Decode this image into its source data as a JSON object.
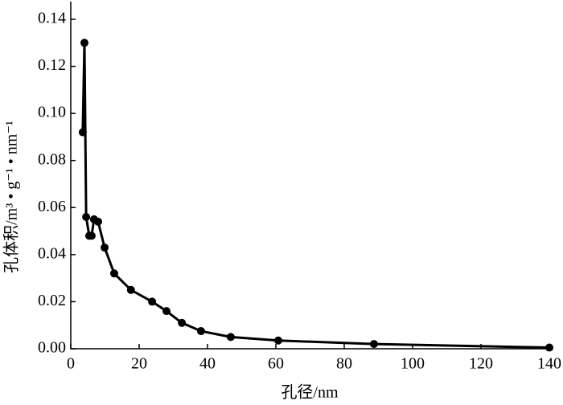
{
  "chart_data": {
    "type": "line",
    "x_label": "孔径/nm",
    "y_label": "孔体积/m³ • g⁻¹ • nm⁻¹",
    "x": [
      3.5,
      4.0,
      4.5,
      5.4,
      6.1,
      6.8,
      8.0,
      9.9,
      12.7,
      17.6,
      23.8,
      28.0,
      32.5,
      38.1,
      46.8,
      60.7,
      88.7,
      140
    ],
    "series": [
      {
        "color": "#000000",
        "values": [
          0.092,
          0.13,
          0.056,
          0.048,
          0.048,
          0.055,
          0.054,
          0.043,
          0.032,
          0.025,
          0.02,
          0.016,
          0.011,
          0.0075,
          0.005,
          0.0035,
          0.002,
          0.0005
        ]
      }
    ],
    "xlim": [
      0,
      140
    ],
    "xticks": [
      0,
      20,
      40,
      60,
      80,
      100,
      120,
      140
    ],
    "ylim": [
      0,
      0.14
    ],
    "yticks": [
      {
        "value": 0,
        "label": "0.00"
      },
      {
        "value": 0.02,
        "label": "0.02"
      },
      {
        "value": 0.04,
        "label": "0.04"
      },
      {
        "value": 0.06,
        "label": "0.06"
      },
      {
        "value": 0.08,
        "label": "0.08"
      },
      {
        "value": 0.1,
        "label": "0.10"
      },
      {
        "value": 0.12,
        "label": "0.12"
      },
      {
        "value": 0.14,
        "label": "0.14"
      }
    ],
    "grid": false
  }
}
